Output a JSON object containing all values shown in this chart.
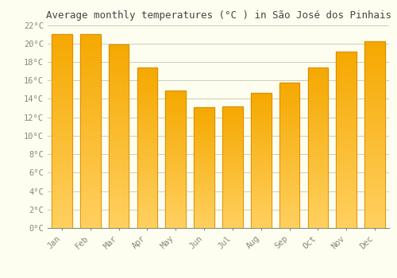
{
  "title": "Average monthly temperatures (°C ) in São José dos Pinhais",
  "months": [
    "Jan",
    "Feb",
    "Mar",
    "Apr",
    "May",
    "Jun",
    "Jul",
    "Aug",
    "Sep",
    "Oct",
    "Nov",
    "Dec"
  ],
  "values": [
    21.0,
    21.0,
    19.9,
    17.4,
    14.9,
    13.1,
    13.2,
    14.6,
    15.8,
    17.4,
    19.1,
    20.2
  ],
  "bar_color_top": "#F5A800",
  "bar_color_bottom": "#FFD060",
  "ylim": [
    0,
    22
  ],
  "yticks": [
    0,
    2,
    4,
    6,
    8,
    10,
    12,
    14,
    16,
    18,
    20,
    22
  ],
  "ytick_labels": [
    "0°C",
    "2°C",
    "4°C",
    "6°C",
    "8°C",
    "10°C",
    "12°C",
    "14°C",
    "16°C",
    "18°C",
    "20°C",
    "22°C"
  ],
  "background_color": "#FEFEF0",
  "grid_color": "#CCCCBB",
  "title_fontsize": 9,
  "tick_fontsize": 7.5,
  "bar_edge_color": "#D08000",
  "bar_width": 0.72
}
